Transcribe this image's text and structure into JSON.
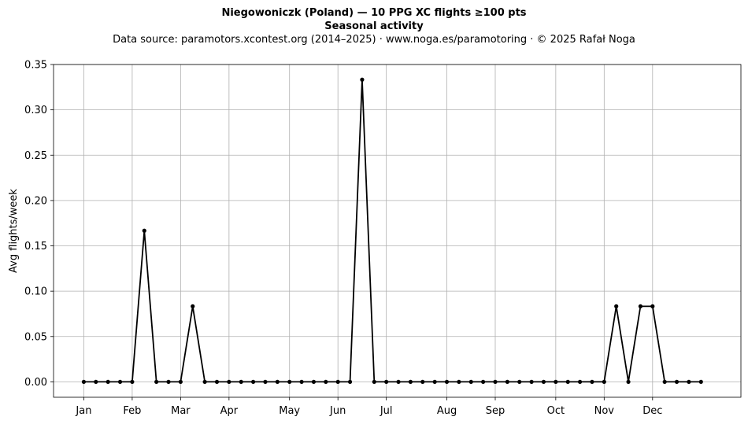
{
  "chart_data": {
    "type": "line",
    "title": "Niegowoniczk (Poland)  —  10 PPG XC flights ≥100 pts",
    "title_line2": "Seasonal activity",
    "subtitle": "Data source: paramotors.xcontest.org (2014–2025)  ·  www.noga.es/paramotoring  ·  © 2025 Rafał Noga",
    "xlabel": "",
    "ylabel": "Avg flights/week",
    "ylim": [
      -0.017,
      0.35
    ],
    "xlim": [
      -2.5,
      54.3
    ],
    "yticks": [
      0.0,
      0.05,
      0.1,
      0.15,
      0.2,
      0.25,
      0.3,
      0.35
    ],
    "ytick_labels": [
      "0.00",
      "0.05",
      "0.10",
      "0.15",
      "0.20",
      "0.25",
      "0.30",
      "0.35"
    ],
    "xticks": [
      0,
      4,
      8,
      12,
      17,
      21,
      25,
      30,
      34,
      39,
      43,
      47
    ],
    "xtick_labels": [
      "Jan",
      "Feb",
      "Mar",
      "Apr",
      "May",
      "Jun",
      "Jul",
      "Aug",
      "Sep",
      "Oct",
      "Nov",
      "Dec"
    ],
    "grid": true,
    "line_color": "#000000",
    "x": [
      0,
      1,
      2,
      3,
      4,
      5,
      6,
      7,
      8,
      9,
      10,
      11,
      12,
      13,
      14,
      15,
      16,
      17,
      18,
      19,
      20,
      21,
      22,
      23,
      24,
      25,
      26,
      27,
      28,
      29,
      30,
      31,
      32,
      33,
      34,
      35,
      36,
      37,
      38,
      39,
      40,
      41,
      42,
      43,
      44,
      45,
      46,
      47,
      48,
      49,
      50,
      51
    ],
    "values": [
      0,
      0,
      0,
      0,
      0,
      0.1667,
      0,
      0,
      0,
      0.0833,
      0,
      0,
      0,
      0,
      0,
      0,
      0,
      0,
      0,
      0,
      0,
      0,
      0,
      0.3333,
      0,
      0,
      0,
      0,
      0,
      0,
      0,
      0,
      0,
      0,
      0,
      0,
      0,
      0,
      0,
      0,
      0,
      0,
      0,
      0,
      0.0833,
      0,
      0.0833,
      0.0833,
      0,
      0,
      0,
      0
    ]
  }
}
